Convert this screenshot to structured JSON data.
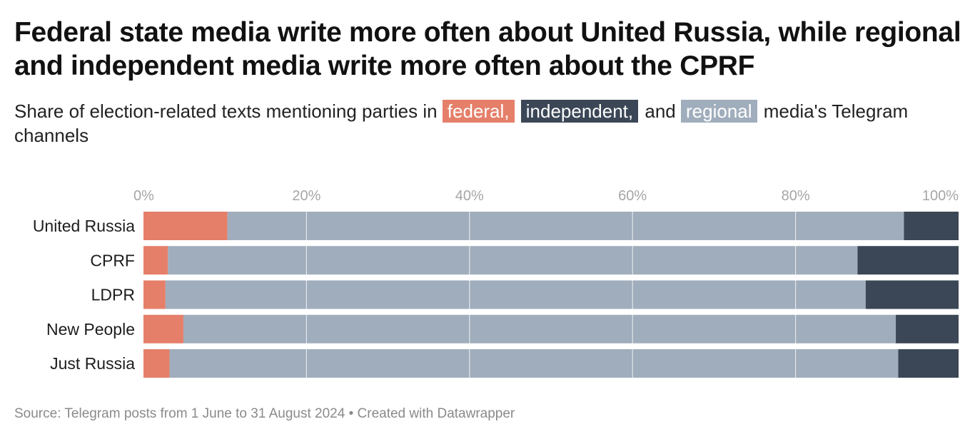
{
  "title": "Federal state media write more often about United Russia, while regional and independent media write more often about the CPRF",
  "subtitle": {
    "prefix": "Share of election-related texts mentioning parties in",
    "federal": "federal,",
    "independent": "independent,",
    "and": "and",
    "regional": "regional",
    "suffix": "media's Telegram channels"
  },
  "footer": "Source: Telegram posts from 1 June to 31 August 2024 • Created with Datawrapper",
  "colors": {
    "federal": "#e57f69",
    "regional": "#a0adbc",
    "independent": "#3b4756",
    "gridline": "#ffffff",
    "tick_label": "#a6a6a6"
  },
  "chart_data": {
    "type": "bar",
    "orientation": "horizontal",
    "stacked": true,
    "categories": [
      "United Russia",
      "CPRF",
      "LDPR",
      "New People",
      "Just Russia"
    ],
    "series": [
      {
        "name": "federal",
        "color": "#e57f69",
        "values": [
          10.3,
          3.0,
          2.7,
          4.9,
          3.2
        ]
      },
      {
        "name": "regional",
        "color": "#a0adbc",
        "values": [
          83.0,
          84.6,
          85.9,
          87.4,
          89.4
        ]
      },
      {
        "name": "independent",
        "color": "#3b4756",
        "values": [
          6.7,
          12.4,
          11.4,
          7.7,
          7.4
        ]
      }
    ],
    "x_ticks": [
      0,
      20,
      40,
      60,
      80,
      100
    ],
    "x_tick_labels": [
      "0%",
      "20%",
      "40%",
      "60%",
      "80%",
      "100%"
    ],
    "xlim": [
      0,
      100
    ],
    "grid": true,
    "legend_placement": "inline in subtitle"
  }
}
